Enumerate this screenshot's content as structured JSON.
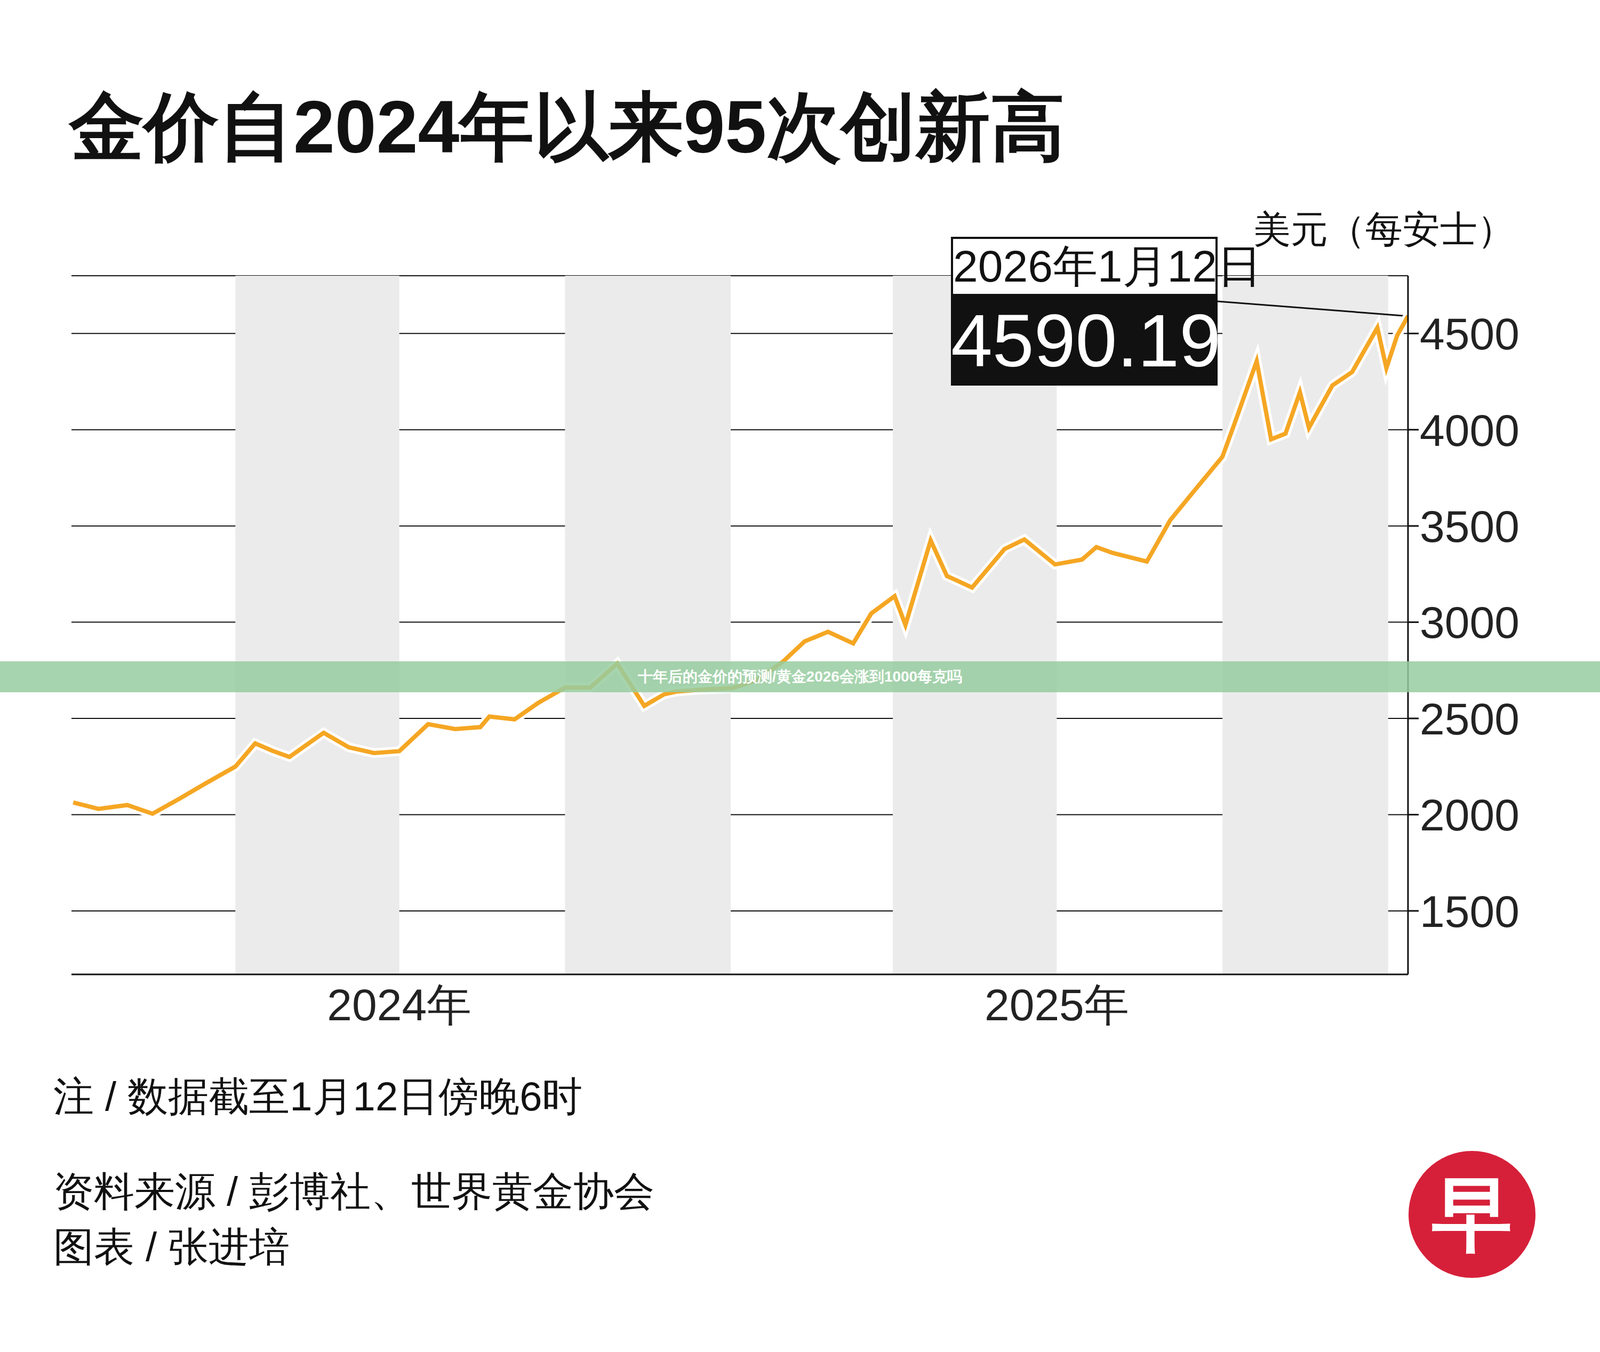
{
  "chart_data": {
    "type": "line",
    "title": "金价自2024年以来95次创新高",
    "y_label": "美元（每安士）",
    "x": [
      "2024-01-02",
      "2024-01-16",
      "2024-02-01",
      "2024-02-15",
      "2024-03-01",
      "2024-03-15",
      "2024-04-01",
      "2024-04-12",
      "2024-04-22",
      "2024-05-01",
      "2024-05-20",
      "2024-06-03",
      "2024-06-17",
      "2024-07-01",
      "2024-07-17",
      "2024-08-01",
      "2024-08-15",
      "2024-08-20",
      "2024-09-03",
      "2024-09-16",
      "2024-10-01",
      "2024-10-15",
      "2024-10-30",
      "2024-11-14",
      "2024-11-25",
      "2024-12-02",
      "2024-12-16",
      "2025-01-02",
      "2025-01-15",
      "2025-01-30",
      "2025-02-11",
      "2025-02-24",
      "2025-03-10",
      "2025-03-20",
      "2025-04-02",
      "2025-04-08",
      "2025-04-22",
      "2025-05-01",
      "2025-05-15",
      "2025-06-02",
      "2025-06-13",
      "2025-06-30",
      "2025-07-15",
      "2025-07-23",
      "2025-08-01",
      "2025-08-20",
      "2025-09-02",
      "2025-09-16",
      "2025-10-01",
      "2025-10-08",
      "2025-10-20",
      "2025-10-28",
      "2025-11-05",
      "2025-11-13",
      "2025-11-18",
      "2025-12-01",
      "2025-12-12",
      "2025-12-26",
      "2025-12-31",
      "2026-01-06",
      "2026-01-12"
    ],
    "values": [
      2063,
      2030,
      2050,
      2005,
      2083,
      2160,
      2250,
      2370,
      2330,
      2300,
      2425,
      2350,
      2320,
      2330,
      2470,
      2445,
      2455,
      2510,
      2495,
      2580,
      2660,
      2660,
      2785,
      2565,
      2625,
      2640,
      2650,
      2657,
      2697,
      2795,
      2900,
      2950,
      2890,
      3045,
      3135,
      2985,
      3425,
      3240,
      3180,
      3380,
      3430,
      3300,
      3325,
      3390,
      3360,
      3315,
      3530,
      3690,
      3860,
      4040,
      4356,
      3950,
      3980,
      4195,
      4010,
      4230,
      4300,
      4530,
      4320,
      4490,
      4590.19
    ],
    "color": "#f5a623",
    "xlim": [
      "2024-01-01",
      "2026-01-12"
    ],
    "xticks": [
      {
        "value": "2024-07-01",
        "label": "2024年"
      },
      {
        "value": "2025-07-01",
        "label": "2025年"
      }
    ],
    "ylim": [
      1170,
      4800
    ],
    "yticks": [
      1500,
      2000,
      2500,
      3000,
      3500,
      4000,
      4500
    ],
    "grid": true,
    "annotation": {
      "date": "2026年1月12日",
      "value": 4590.19
    },
    "note": "注 / 数据截至1月12日傍晚6时",
    "source": "资料来源 / 彭博社、世界黄金协会",
    "credit": "图表 / 张进培",
    "logo": "早",
    "watermark": "十年后的金价的预测/黄金2026会涨到1000每克吗"
  }
}
